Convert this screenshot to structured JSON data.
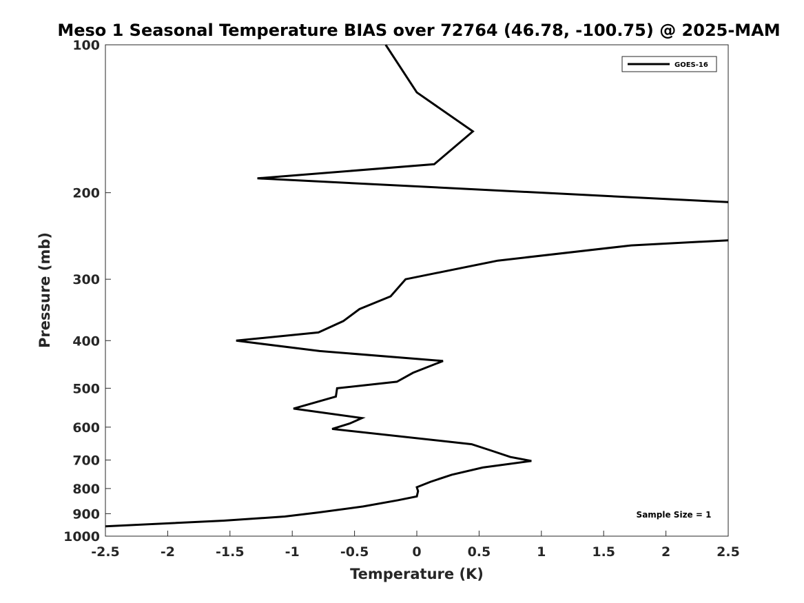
{
  "chart_data": {
    "type": "line",
    "title": "Meso 1 Seasonal Temperature BIAS over 72764 (46.78, -100.75) @ 2025-MAM",
    "xlabel": "Temperature (K)",
    "ylabel": "Pressure (mb)",
    "xlim": [
      -2.5,
      2.5
    ],
    "ylim": [
      100,
      1000
    ],
    "yscale": "log",
    "ydirection": "reversed",
    "xticks": [
      -2.5,
      -2,
      -1.5,
      -1,
      -0.5,
      0,
      0.5,
      1,
      1.5,
      2,
      2.5
    ],
    "xtick_labels": [
      "-2.5",
      "-2",
      "-1.5",
      "-1",
      "-0.5",
      "0",
      "0.5",
      "1",
      "1.5",
      "2",
      "2.5"
    ],
    "yticks": [
      100,
      200,
      300,
      400,
      500,
      600,
      700,
      800,
      900,
      1000
    ],
    "ytick_labels": [
      "100",
      "200",
      "300",
      "400",
      "500",
      "600",
      "700",
      "800",
      "900",
      "1000"
    ],
    "grid": false,
    "legend_position": "top-right",
    "annotation": "Sample Size = 1",
    "series": [
      {
        "name": "GOES-16",
        "color": "#000000",
        "points": [
          {
            "x": -0.25,
            "p": 100
          },
          {
            "x": 0.0,
            "p": 125
          },
          {
            "x": 0.45,
            "p": 150
          },
          {
            "x": 0.14,
            "p": 175
          },
          {
            "x": -1.28,
            "p": 187
          },
          {
            "x": 2.5,
            "p": 209
          },
          {
            "x": null,
            "p": null
          },
          {
            "x": 2.5,
            "p": 250
          },
          {
            "x": 1.72,
            "p": 256
          },
          {
            "x": 0.65,
            "p": 275
          },
          {
            "x": -0.09,
            "p": 300
          },
          {
            "x": -0.21,
            "p": 325
          },
          {
            "x": -0.46,
            "p": 345
          },
          {
            "x": -0.59,
            "p": 365
          },
          {
            "x": -0.79,
            "p": 385
          },
          {
            "x": -1.45,
            "p": 400
          },
          {
            "x": -0.78,
            "p": 420
          },
          {
            "x": 0.21,
            "p": 440
          },
          {
            "x": -0.03,
            "p": 465
          },
          {
            "x": -0.16,
            "p": 485
          },
          {
            "x": -0.64,
            "p": 500
          },
          {
            "x": -0.65,
            "p": 520
          },
          {
            "x": -0.99,
            "p": 550
          },
          {
            "x": -0.44,
            "p": 575
          },
          {
            "x": -0.54,
            "p": 590
          },
          {
            "x": -0.68,
            "p": 605
          },
          {
            "x": 0.44,
            "p": 650
          },
          {
            "x": 0.6,
            "p": 670
          },
          {
            "x": 0.75,
            "p": 690
          },
          {
            "x": 0.92,
            "p": 703
          },
          {
            "x": 0.53,
            "p": 725
          },
          {
            "x": 0.28,
            "p": 750
          },
          {
            "x": 0.11,
            "p": 775
          },
          {
            "x": 0.0,
            "p": 795
          },
          {
            "x": 0.01,
            "p": 810
          },
          {
            "x": 0.0,
            "p": 830
          },
          {
            "x": -0.15,
            "p": 845
          },
          {
            "x": -0.43,
            "p": 870
          },
          {
            "x": -0.79,
            "p": 895
          },
          {
            "x": -1.06,
            "p": 912
          },
          {
            "x": -1.55,
            "p": 930
          },
          {
            "x": -2.5,
            "p": 955
          }
        ]
      }
    ]
  }
}
